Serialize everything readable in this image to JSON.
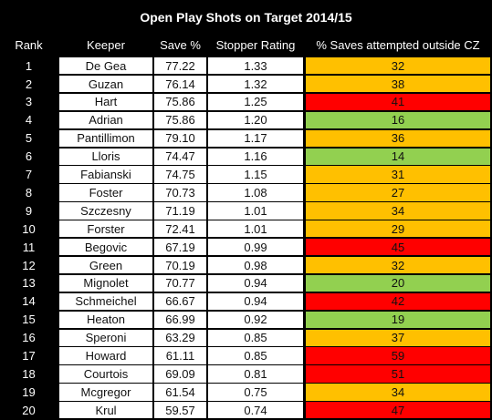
{
  "title": "Open Play Shots on Target 2014/15",
  "table": {
    "headers": [
      "Rank",
      "Keeper",
      "Save %",
      "Stopper Rating",
      "% Saves attempted outside CZ"
    ],
    "rows": [
      [
        "1",
        "De Gea",
        "77.22",
        "1.33",
        "32"
      ],
      [
        "2",
        "Guzan",
        "76.14",
        "1.32",
        "38"
      ],
      [
        "3",
        "Hart",
        "75.86",
        "1.25",
        "41"
      ],
      [
        "4",
        "Adrian",
        "75.86",
        "1.20",
        "16"
      ],
      [
        "5",
        "Pantillimon",
        "79.10",
        "1.17",
        "36"
      ],
      [
        "6",
        "Lloris",
        "74.47",
        "1.16",
        "14"
      ],
      [
        "7",
        "Fabianski",
        "74.75",
        "1.15",
        "31"
      ],
      [
        "8",
        "Foster",
        "70.73",
        "1.08",
        "27"
      ],
      [
        "9",
        "Szczesny",
        "71.19",
        "1.01",
        "34"
      ],
      [
        "10",
        "Forster",
        "72.41",
        "1.01",
        "29"
      ],
      [
        "11",
        "Begovic",
        "67.19",
        "0.99",
        "45"
      ],
      [
        "12",
        "Green",
        "70.19",
        "0.98",
        "32"
      ],
      [
        "13",
        "Mignolet",
        "70.77",
        "0.94",
        "20"
      ],
      [
        "14",
        "Schmeichel",
        "66.67",
        "0.94",
        "42"
      ],
      [
        "15",
        "Heaton",
        "66.99",
        "0.92",
        "19"
      ],
      [
        "16",
        "Speroni",
        "63.29",
        "0.85",
        "37"
      ],
      [
        "17",
        "Howard",
        "61.11",
        "0.85",
        "59"
      ],
      [
        "18",
        "Courtois",
        "69.09",
        "0.81",
        "51"
      ],
      [
        "19",
        "Mcgregor",
        "61.54",
        "0.75",
        "34"
      ],
      [
        "20",
        "Krul",
        "59.57",
        "0.74",
        "47"
      ]
    ],
    "row_colors": [
      "#ffc000",
      "#ffc000",
      "#ff0000",
      "#92d050",
      "#ffc000",
      "#92d050",
      "#ffc000",
      "#ffc000",
      "#ffc000",
      "#ffc000",
      "#ff0000",
      "#ffc000",
      "#92d050",
      "#ff0000",
      "#92d050",
      "#ffc000",
      "#ff0000",
      "#ff0000",
      "#ffc000",
      "#ff0000"
    ]
  }
}
